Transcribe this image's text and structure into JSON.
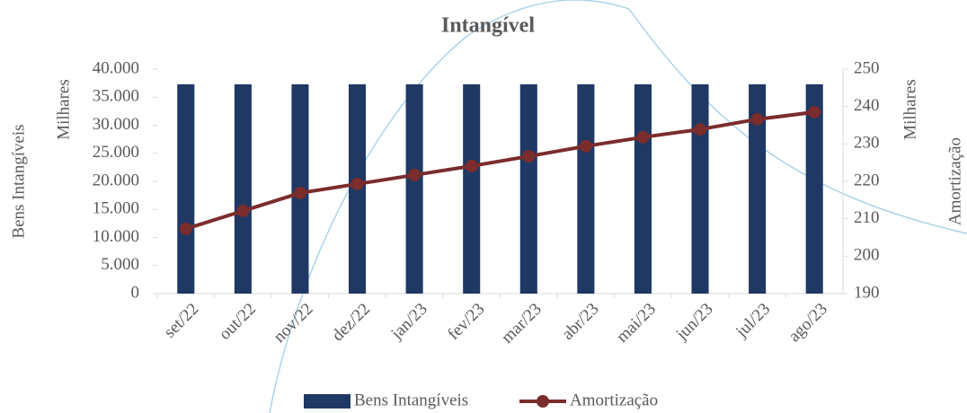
{
  "chart_data": {
    "type": "bar-line",
    "title": "Intangível",
    "y_label": "Bens Intangíveis",
    "y_unit": "Milhares",
    "y2_label": "Amortização",
    "y2_unit": "Milhares",
    "categories": [
      "set/22",
      "out/22",
      "nov/22",
      "dez/22",
      "jan/23",
      "fev/23",
      "mar/23",
      "abr/23",
      "mai/23",
      "jun/23",
      "jul/23",
      "ago/23"
    ],
    "series": [
      {
        "name": "Bens Intangíveis",
        "type": "bar",
        "color": "#1f3864",
        "values": [
          37300,
          37300,
          37300,
          37300,
          37300,
          37300,
          37300,
          37300,
          37300,
          37300,
          37300,
          37300
        ]
      },
      {
        "name": "Amortização",
        "type": "line",
        "axis": "y2",
        "color": "#7b2c2c",
        "values": [
          207.3,
          212.1,
          216.9,
          219.3,
          221.7,
          224.1,
          226.7,
          229.4,
          231.8,
          233.9,
          236.6,
          238.5
        ]
      }
    ],
    "ylim": [
      0,
      40000
    ],
    "yticks": [
      0,
      {
        "value": 5000,
        "label": "5.000"
      },
      {
        "value": 10000,
        "label": "10.000"
      },
      {
        "value": 15000,
        "label": "15.000"
      },
      {
        "value": 20000,
        "label": "20.000"
      },
      {
        "value": 25000,
        "label": "25.000"
      },
      {
        "value": 30000,
        "label": "30.000"
      },
      {
        "value": 35000,
        "label": "35.000"
      },
      {
        "value": 40000,
        "label": "40.000"
      }
    ],
    "y2lim": [
      190,
      250
    ],
    "y2ticks": [
      190,
      200,
      210,
      220,
      230,
      240,
      250
    ],
    "legend": "bottom"
  }
}
